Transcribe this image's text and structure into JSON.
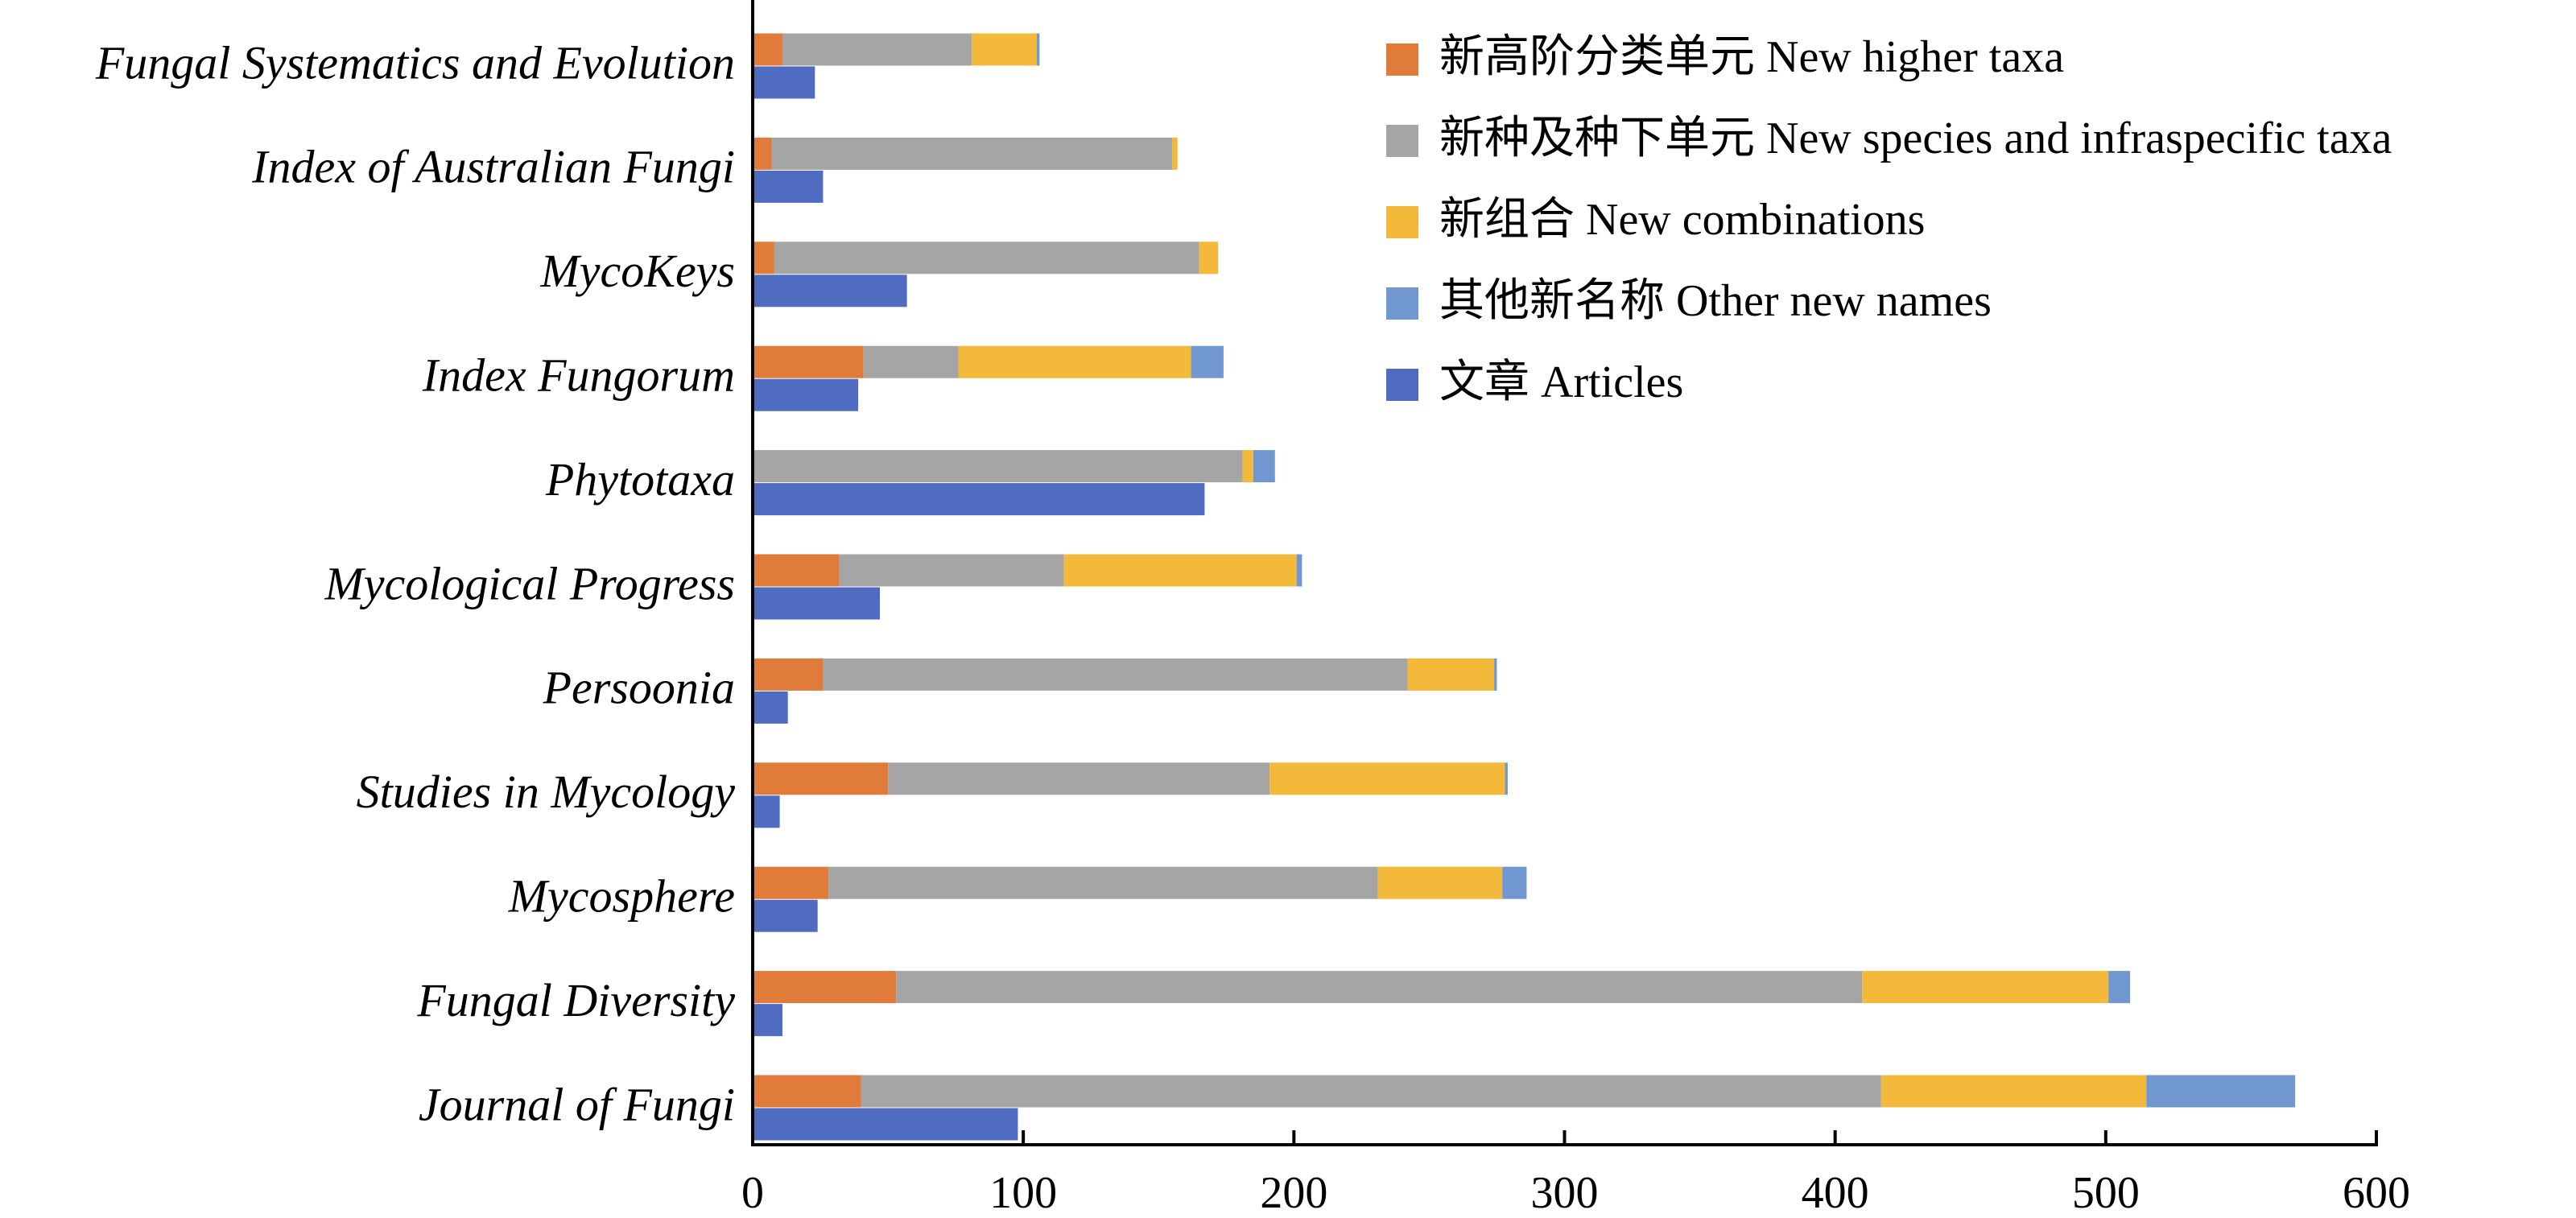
{
  "chart_data": {
    "type": "bar",
    "orientation": "horizontal",
    "stacked": true,
    "title": "",
    "xlabel": "",
    "ylabel": "",
    "xlim": [
      0,
      600
    ],
    "xticks": [
      0,
      100,
      200,
      300,
      400,
      500,
      600
    ],
    "grid": false,
    "legend_position": "top-right",
    "categories": [
      "Fungal Systematics and Evolution",
      "Index of Australian Fungi",
      "MycoKeys",
      "Index Fungorum",
      "Phytotaxa",
      "Mycological Progress",
      "Persoonia",
      "Studies in Mycology",
      "Mycosphere",
      "Fungal Diversity",
      "Journal of Fungi"
    ],
    "series": [
      {
        "name": "新高阶分类单元 New higher taxa",
        "color": "#E07B39",
        "group": "names",
        "values": [
          11,
          7,
          8,
          41,
          0,
          32,
          26,
          50,
          28,
          53,
          40
        ]
      },
      {
        "name": "新种及种下单元 New species and infraspecific taxa",
        "color": "#A5A5A5",
        "group": "names",
        "values": [
          70,
          148,
          157,
          35,
          181,
          83,
          216,
          141,
          203,
          357,
          377
        ]
      },
      {
        "name": "新组合 New combinations",
        "color": "#F2B93B",
        "group": "names",
        "values": [
          24,
          2,
          7,
          86,
          4,
          86,
          32,
          87,
          46,
          91,
          98
        ]
      },
      {
        "name": "其他新名称 Other new names",
        "color": "#7097D0",
        "group": "names",
        "values": [
          1,
          0,
          0,
          12,
          8,
          2,
          1,
          1,
          9,
          8,
          55
        ]
      },
      {
        "name": "文章 Articles",
        "color": "#4F6CC0",
        "group": "articles",
        "values": [
          23,
          26,
          57,
          39,
          167,
          47,
          13,
          10,
          24,
          11,
          98
        ]
      }
    ]
  }
}
